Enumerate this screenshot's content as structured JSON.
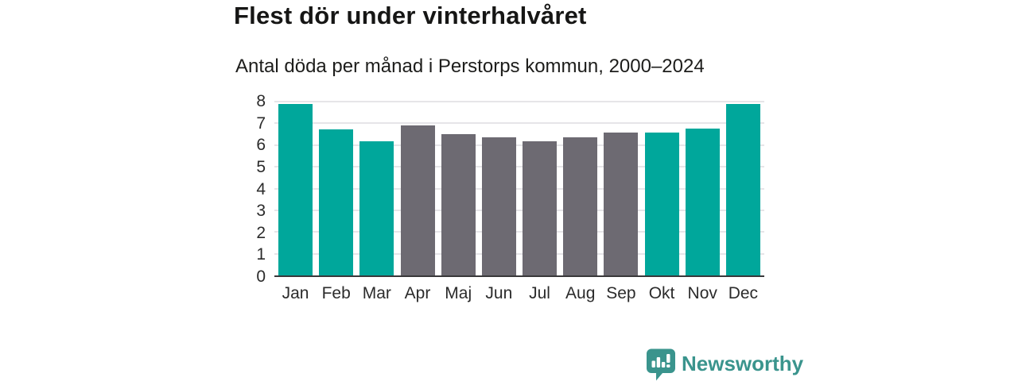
{
  "title": "Flest dör under vinterhalvåret",
  "subtitle": "Antal döda per månad i Perstorps kommun, 2000–2024",
  "chart_data": {
    "type": "bar",
    "title": "Flest dör under vinterhalvåret",
    "subtitle": "Antal döda per månad i Perstorps kommun, 2000–2024",
    "categories": [
      "Jan",
      "Feb",
      "Mar",
      "Apr",
      "Maj",
      "Jun",
      "Jul",
      "Aug",
      "Sep",
      "Okt",
      "Nov",
      "Dec"
    ],
    "values": [
      7.9,
      6.72,
      6.16,
      6.9,
      6.52,
      6.36,
      6.16,
      6.36,
      6.56,
      6.56,
      6.76,
      7.9
    ],
    "bar_groups": [
      "winter",
      "winter",
      "winter",
      "summer",
      "summer",
      "summer",
      "summer",
      "summer",
      "summer",
      "winter",
      "winter",
      "winter"
    ],
    "palette": {
      "winter": "#00a79b",
      "summer": "#6d6a72"
    },
    "ylim": [
      0,
      8
    ],
    "yticks": [
      0,
      1,
      2,
      3,
      4,
      5,
      6,
      7,
      8
    ],
    "xlabel": "",
    "ylabel": "",
    "grid": "horizontal",
    "legend": "none"
  },
  "footer": {
    "brand": "Newsworthy"
  },
  "colors": {
    "accent_teal": "#00a79b",
    "bar_gray": "#6d6a72",
    "logo_teal": "#3a948d",
    "axis_line": "#39383a",
    "gridline": "#e6e5e8",
    "text": "#1d1d1b"
  }
}
